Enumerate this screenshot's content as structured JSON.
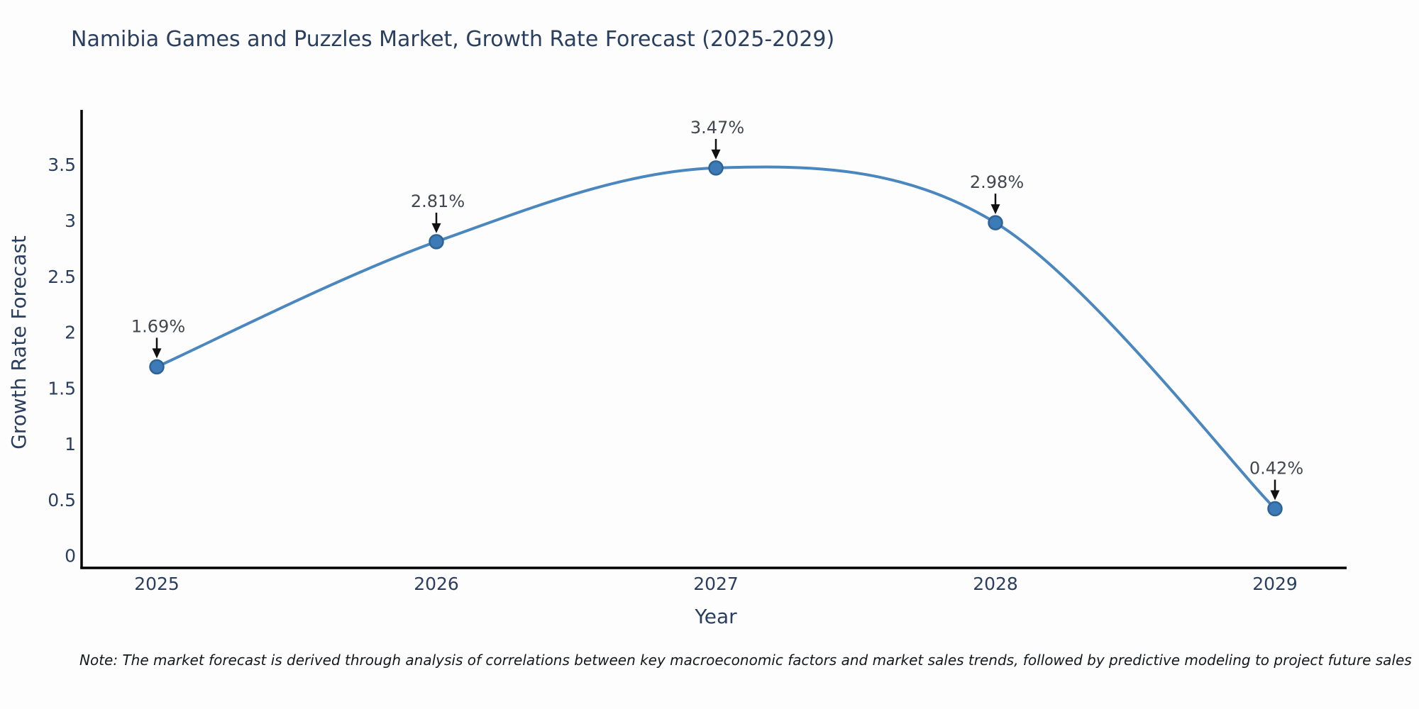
{
  "chart_data": {
    "type": "line",
    "title": "Namibia Games and Puzzles Market, Growth Rate Forecast (2025-2029)",
    "xlabel": "Year",
    "ylabel": "Growth Rate Forecast",
    "categories": [
      "2025",
      "2026",
      "2027",
      "2028",
      "2029"
    ],
    "series": [
      {
        "name": "Growth Rate Forecast",
        "values": [
          1.69,
          2.81,
          3.47,
          2.98,
          0.42
        ]
      }
    ],
    "point_labels": [
      "1.69%",
      "2.81%",
      "3.47%",
      "2.98%",
      "0.42%"
    ],
    "y_tick_values": [
      0,
      0.5,
      1,
      1.5,
      2,
      2.5,
      3,
      3.5
    ],
    "y_tick_labels": [
      "0",
      "0.5",
      "1",
      "1.5",
      "2",
      "2.5",
      "3",
      "3.5"
    ],
    "ylim": [
      -0.11,
      3.99
    ],
    "line_shape": "spline",
    "grid": false,
    "legend": "none",
    "annotation_style": "down-arrow",
    "colors": {
      "line": "#4a87bf",
      "marker": "#3d7ab8",
      "marker_edge": "#2e6394",
      "axis": "#000000",
      "text": "#2a3f5f",
      "annotation_text": "#42464e",
      "arrow": "#111111"
    }
  },
  "note": "Note: The market forecast is derived through analysis of correlations between key macroeconomic factors and market sales trends, followed by predictive modeling to project future sales"
}
